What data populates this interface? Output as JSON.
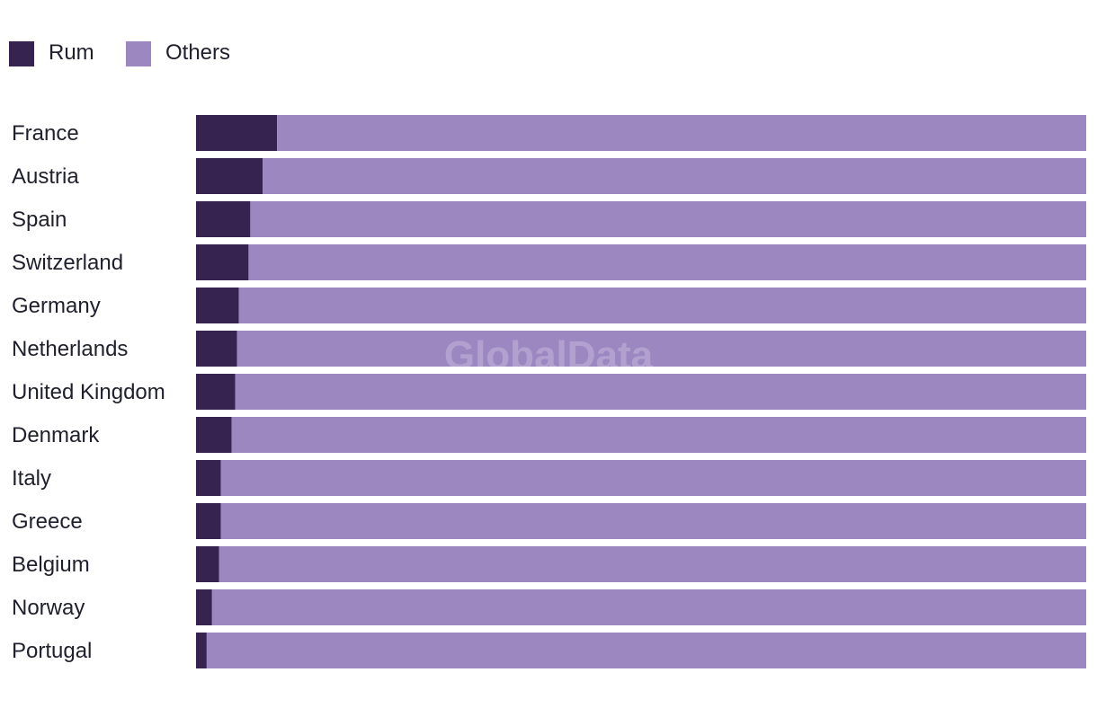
{
  "watermark": "GlobalData",
  "colors": {
    "rum": "#37234f",
    "others": "#9d87c1"
  },
  "chart_data": {
    "type": "bar",
    "orientation": "horizontal",
    "stacked": true,
    "normalized": true,
    "categories": [
      "France",
      "Austria",
      "Spain",
      "Switzerland",
      "Germany",
      "Netherlands",
      "United Kingdom",
      "Denmark",
      "Italy",
      "Greece",
      "Belgium",
      "Norway",
      "Portugal"
    ],
    "series": [
      {
        "name": "Rum",
        "values": [
          9.1,
          7.5,
          6.1,
          5.9,
          4.8,
          4.6,
          4.4,
          4.0,
          2.8,
          2.8,
          2.6,
          1.8,
          1.2
        ]
      },
      {
        "name": "Others",
        "values": [
          90.9,
          92.5,
          93.9,
          94.1,
          95.2,
          95.4,
          95.6,
          96.0,
          97.2,
          97.2,
          97.4,
          98.2,
          98.8
        ]
      }
    ],
    "xlim": [
      0,
      100
    ],
    "legend_position": "top-left",
    "grid": false,
    "title": "",
    "xlabel": "",
    "ylabel": ""
  }
}
